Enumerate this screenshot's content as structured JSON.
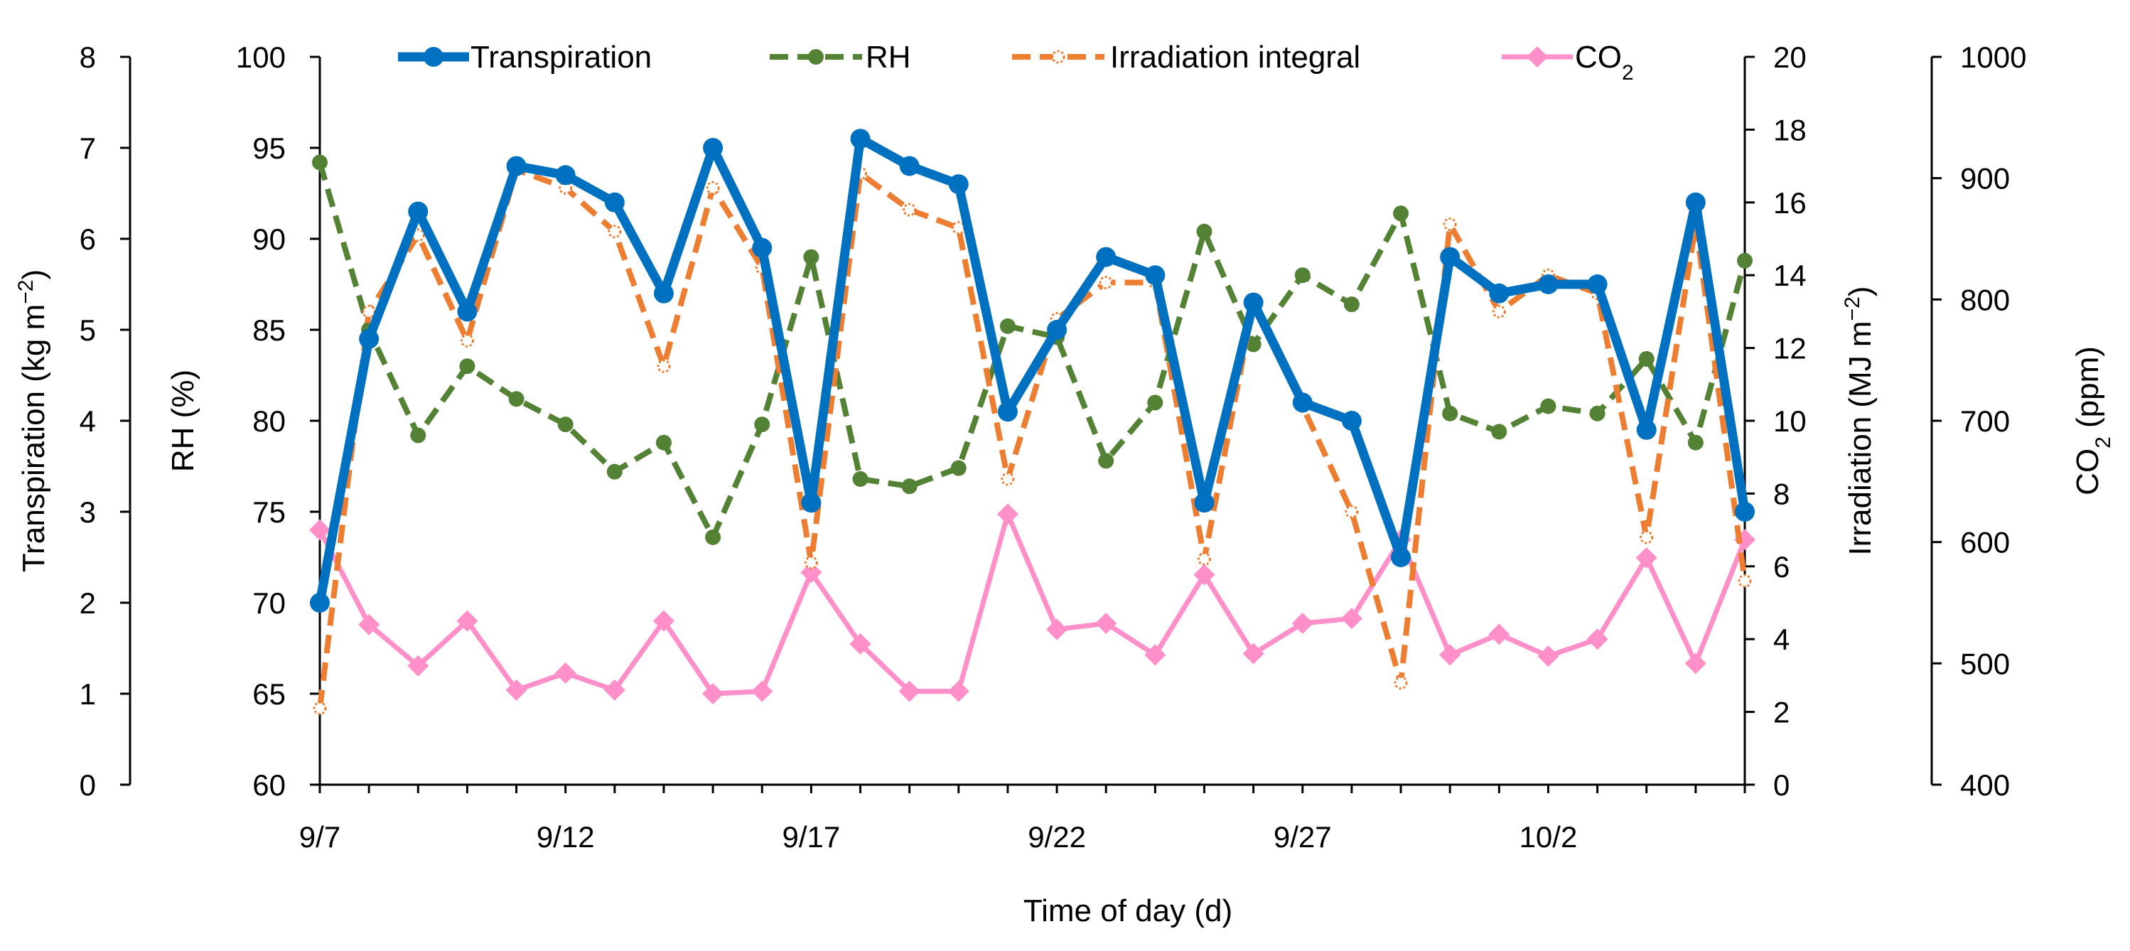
{
  "chart_data": {
    "type": "line",
    "x_axis": {
      "label": "Time of day (d)",
      "categories": [
        "9/7",
        "9/8",
        "9/9",
        "9/10",
        "9/11",
        "9/12",
        "9/13",
        "9/14",
        "9/15",
        "9/16",
        "9/17",
        "9/18",
        "9/19",
        "9/20",
        "9/21",
        "9/22",
        "9/23",
        "9/24",
        "9/25",
        "9/26",
        "9/27",
        "9/28",
        "9/29",
        "9/30",
        "10/1",
        "10/2",
        "10/3",
        "10/4",
        "10/5",
        "10/6"
      ],
      "tick_labels": [
        "9/7",
        "9/12",
        "9/17",
        "9/22",
        "9/27",
        "10/2"
      ]
    },
    "axes": [
      {
        "id": "transpiration",
        "label_main": "Transpiration (kg m",
        "label_sup": "−2",
        "label_end": ")",
        "range": [
          0,
          8
        ],
        "ticks": [
          "0",
          "1",
          "2",
          "3",
          "4",
          "5",
          "6",
          "7",
          "8"
        ]
      },
      {
        "id": "rh",
        "label_main": "RH (%)",
        "range": [
          60,
          100
        ],
        "ticks": [
          "60",
          "65",
          "70",
          "75",
          "80",
          "85",
          "90",
          "95",
          "100"
        ]
      },
      {
        "id": "irradiation",
        "label_main": "Irradiation (MJ m",
        "label_sup": "−2",
        "label_end": ")",
        "range": [
          0,
          20
        ],
        "ticks": [
          "0",
          "2",
          "4",
          "6",
          "8",
          "10",
          "12",
          "14",
          "16",
          "18",
          "20"
        ]
      },
      {
        "id": "co2",
        "label_main": "CO",
        "label_sub": "2",
        "label_end": " (ppm)",
        "range": [
          400,
          1000
        ],
        "ticks": [
          "400",
          "500",
          "600",
          "700",
          "800",
          "900",
          "1000"
        ]
      }
    ],
    "series": [
      {
        "name": "Transpiration",
        "axis": "transpiration",
        "color": "#0070C0",
        "style": "solid-thick-circle",
        "values": [
          2.0,
          4.9,
          6.3,
          5.2,
          6.8,
          6.7,
          6.4,
          5.4,
          7.0,
          5.9,
          3.1,
          7.1,
          6.8,
          6.6,
          4.1,
          5.0,
          5.8,
          5.6,
          3.1,
          5.3,
          4.2,
          4.0,
          2.5,
          5.8,
          5.4,
          5.5,
          5.5,
          3.9,
          6.4,
          3.0
        ]
      },
      {
        "name": "RH",
        "axis": "rh",
        "color": "#548235",
        "style": "dashed-circle",
        "values": [
          94.2,
          85.0,
          79.2,
          83.0,
          81.2,
          79.8,
          77.2,
          78.8,
          73.6,
          79.8,
          89.0,
          76.8,
          76.4,
          77.4,
          85.2,
          84.6,
          77.8,
          81.0,
          90.4,
          84.2,
          88.0,
          86.4,
          91.4,
          80.4,
          79.4,
          80.8,
          80.4,
          83.4,
          78.8,
          88.8
        ]
      },
      {
        "name": "Irradiation integral",
        "axis": "irradiation",
        "color": "#ED7D31",
        "style": "dashed-dot",
        "values": [
          2.1,
          13.0,
          15.1,
          12.2,
          16.9,
          16.4,
          15.2,
          11.5,
          16.4,
          14.2,
          6.1,
          16.8,
          15.8,
          15.3,
          8.4,
          12.8,
          13.8,
          13.8,
          6.2,
          13.2,
          10.4,
          7.5,
          2.8,
          15.4,
          13.0,
          14.0,
          13.5,
          6.8,
          15.4,
          5.6
        ]
      },
      {
        "name": "CO2",
        "legend_main": "CO",
        "legend_sub": "2",
        "axis": "co2",
        "color": "#FF8FC8",
        "style": "solid-diamond",
        "values": [
          610,
          532,
          498,
          535,
          478,
          492,
          478,
          535,
          475,
          477,
          575,
          516,
          477,
          477,
          623,
          528,
          533,
          507,
          573,
          508,
          533,
          537,
          602,
          507,
          524,
          506,
          520,
          587,
          500,
          602
        ]
      }
    ]
  }
}
